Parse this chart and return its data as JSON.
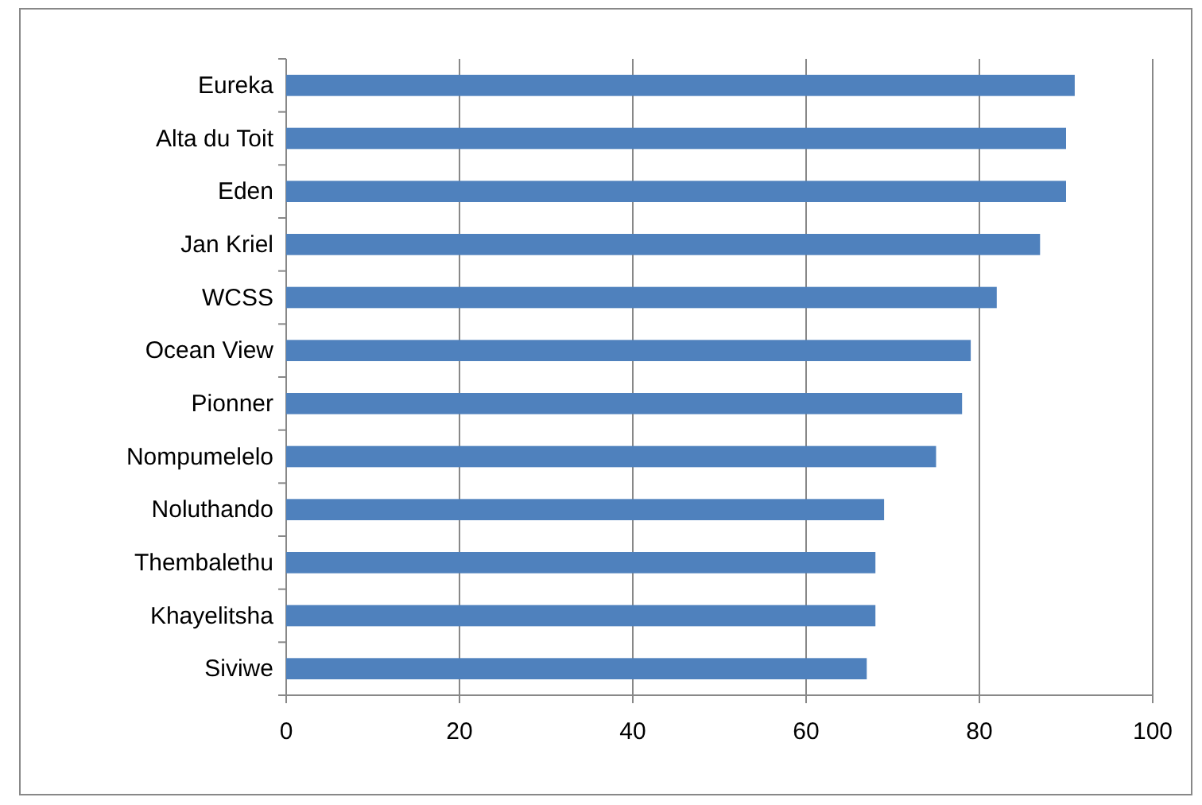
{
  "chart_data": {
    "type": "bar",
    "orientation": "horizontal",
    "categories": [
      "Eureka",
      "Alta du Toit",
      "Eden",
      "Jan Kriel",
      "WCSS",
      "Ocean View",
      "Pionner",
      "Nompumelelo",
      "Noluthando",
      "Thembalethu",
      "Khayelitsha",
      "Siviwe"
    ],
    "values": [
      91,
      90,
      90,
      87,
      82,
      79,
      78,
      75,
      69,
      68,
      68,
      67
    ],
    "color": "#4f81bd",
    "xlim": [
      0,
      100
    ],
    "xticks": [
      0,
      20,
      40,
      60,
      80,
      100
    ],
    "grid": "x"
  }
}
